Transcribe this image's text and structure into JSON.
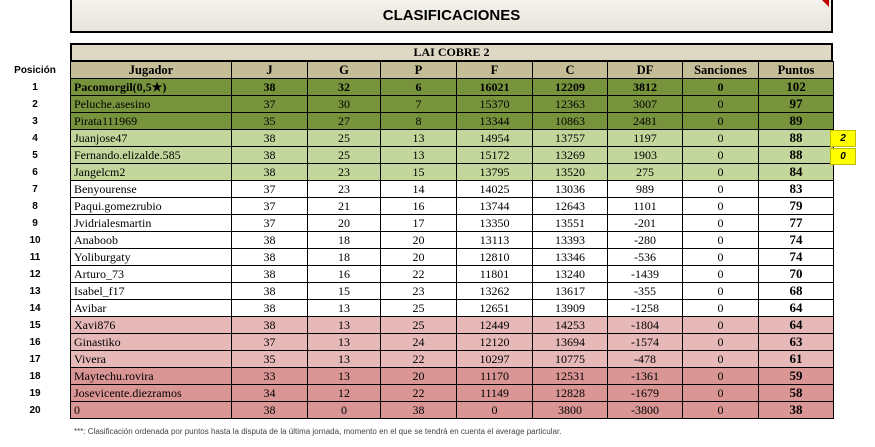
{
  "header": {
    "title": "CLASIFICACIONES"
  },
  "league": {
    "name": "LAI COBRE 2"
  },
  "position_label": "Posición",
  "columns": [
    "Jugador",
    "J",
    "G",
    "P",
    "F",
    "C",
    "DF",
    "Sanciones",
    "Puntos"
  ],
  "colors": {
    "dark_green": "#77933c",
    "light_green": "#c3d69b",
    "white": "#ffffff",
    "pink": "#e6b9b8",
    "dark_pink": "#da9694",
    "header": "#c4bd97",
    "league_title": "#ddd9c4",
    "badge": "#ffff00"
  },
  "rows": [
    {
      "pos": "1",
      "player": "Pacomorgil(0,5★)",
      "j": "38",
      "g": "32",
      "p": "6",
      "f": "16021",
      "c": "12209",
      "df": "3812",
      "s": "0",
      "pts": "102",
      "band": "dark_green"
    },
    {
      "pos": "2",
      "player": "Peluche.asesino",
      "j": "37",
      "g": "30",
      "p": "7",
      "f": "15370",
      "c": "12363",
      "df": "3007",
      "s": "0",
      "pts": "97",
      "band": "dark_green"
    },
    {
      "pos": "3",
      "player": "Pirata111969",
      "j": "35",
      "g": "27",
      "p": "8",
      "f": "13344",
      "c": "10863",
      "df": "2481",
      "s": "0",
      "pts": "89",
      "band": "dark_green"
    },
    {
      "pos": "4",
      "player": "Juanjose47",
      "j": "38",
      "g": "25",
      "p": "13",
      "f": "14954",
      "c": "13757",
      "df": "1197",
      "s": "0",
      "pts": "88",
      "band": "light_green"
    },
    {
      "pos": "5",
      "player": "Fernando.elizalde.585",
      "j": "38",
      "g": "25",
      "p": "13",
      "f": "15172",
      "c": "13269",
      "df": "1903",
      "s": "0",
      "pts": "88",
      "band": "light_green"
    },
    {
      "pos": "6",
      "player": "Jangelcm2",
      "j": "38",
      "g": "23",
      "p": "15",
      "f": "13795",
      "c": "13520",
      "df": "275",
      "s": "0",
      "pts": "84",
      "band": "light_green"
    },
    {
      "pos": "7",
      "player": "Benyourense",
      "j": "37",
      "g": "23",
      "p": "14",
      "f": "14025",
      "c": "13036",
      "df": "989",
      "s": "0",
      "pts": "83",
      "band": "white"
    },
    {
      "pos": "8",
      "player": "Paqui.gomezrubio",
      "j": "37",
      "g": "21",
      "p": "16",
      "f": "13744",
      "c": "12643",
      "df": "1101",
      "s": "0",
      "pts": "79",
      "band": "white"
    },
    {
      "pos": "9",
      "player": "Jvidrialesmartin",
      "j": "37",
      "g": "20",
      "p": "17",
      "f": "13350",
      "c": "13551",
      "df": "-201",
      "s": "0",
      "pts": "77",
      "band": "white"
    },
    {
      "pos": "10",
      "player": "Anaboob",
      "j": "38",
      "g": "18",
      "p": "20",
      "f": "13113",
      "c": "13393",
      "df": "-280",
      "s": "0",
      "pts": "74",
      "band": "white"
    },
    {
      "pos": "11",
      "player": "Yoliburgaty",
      "j": "38",
      "g": "18",
      "p": "20",
      "f": "12810",
      "c": "13346",
      "df": "-536",
      "s": "0",
      "pts": "74",
      "band": "white"
    },
    {
      "pos": "12",
      "player": "Arturo_73",
      "j": "38",
      "g": "16",
      "p": "22",
      "f": "11801",
      "c": "13240",
      "df": "-1439",
      "s": "0",
      "pts": "70",
      "band": "white"
    },
    {
      "pos": "13",
      "player": "Isabel_f17",
      "j": "38",
      "g": "15",
      "p": "23",
      "f": "13262",
      "c": "13617",
      "df": "-355",
      "s": "0",
      "pts": "68",
      "band": "white"
    },
    {
      "pos": "14",
      "player": "Avibar",
      "j": "38",
      "g": "13",
      "p": "25",
      "f": "12651",
      "c": "13909",
      "df": "-1258",
      "s": "0",
      "pts": "64",
      "band": "white"
    },
    {
      "pos": "15",
      "player": "Xavi876",
      "j": "38",
      "g": "13",
      "p": "25",
      "f": "12449",
      "c": "14253",
      "df": "-1804",
      "s": "0",
      "pts": "64",
      "band": "pink"
    },
    {
      "pos": "16",
      "player": "Ginastiko",
      "j": "37",
      "g": "13",
      "p": "24",
      "f": "12120",
      "c": "13694",
      "df": "-1574",
      "s": "0",
      "pts": "63",
      "band": "pink"
    },
    {
      "pos": "17",
      "player": "Vivera",
      "j": "35",
      "g": "13",
      "p": "22",
      "f": "10297",
      "c": "10775",
      "df": "-478",
      "s": "0",
      "pts": "61",
      "band": "pink"
    },
    {
      "pos": "18",
      "player": "Maytechu.rovira",
      "j": "33",
      "g": "13",
      "p": "20",
      "f": "11170",
      "c": "12531",
      "df": "-1361",
      "s": "0",
      "pts": "59",
      "band": "dark_pink"
    },
    {
      "pos": "19",
      "player": "Josevicente.diezramos",
      "j": "34",
      "g": "12",
      "p": "22",
      "f": "11149",
      "c": "12828",
      "df": "-1679",
      "s": "0",
      "pts": "58",
      "band": "dark_pink"
    },
    {
      "pos": "20",
      "player": "0",
      "j": "38",
      "g": "0",
      "p": "38",
      "f": "0",
      "c": "3800",
      "df": "-3800",
      "s": "0",
      "pts": "38",
      "band": "dark_pink"
    }
  ],
  "badges": [
    "2",
    "0"
  ],
  "footnote": "***: Clasificación ordenada por puntos hasta la disputa de la última jornada, momento en el que se tendrá en cuenta el average particular."
}
